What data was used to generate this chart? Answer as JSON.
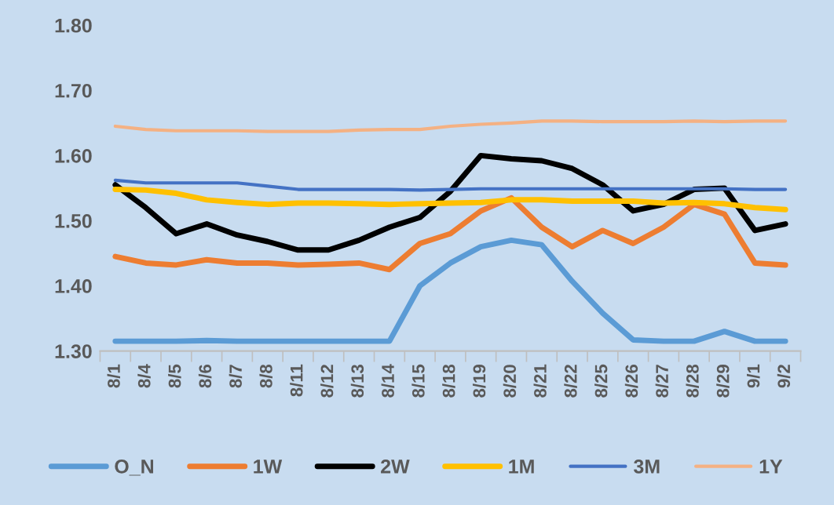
{
  "chart_data": {
    "type": "line",
    "categories": [
      "8/1",
      "8/4",
      "8/5",
      "8/6",
      "8/7",
      "8/8",
      "8/11",
      "8/12",
      "8/13",
      "8/14",
      "8/15",
      "8/18",
      "8/19",
      "8/20",
      "8/21",
      "8/22",
      "8/25",
      "8/26",
      "8/27",
      "8/28",
      "8/29",
      "9/1",
      "9/2"
    ],
    "series": [
      {
        "name": "O_N",
        "color": "#5b9bd5",
        "values": [
          1.315,
          1.315,
          1.315,
          1.316,
          1.315,
          1.315,
          1.315,
          1.315,
          1.315,
          1.315,
          1.4,
          1.435,
          1.46,
          1.47,
          1.463,
          1.407,
          1.358,
          1.317,
          1.315,
          1.315,
          1.33,
          1.315,
          1.315
        ]
      },
      {
        "name": "1W",
        "color": "#ed7d31",
        "values": [
          1.445,
          1.435,
          1.432,
          1.44,
          1.435,
          1.435,
          1.432,
          1.433,
          1.435,
          1.425,
          1.465,
          1.48,
          1.515,
          1.535,
          1.49,
          1.46,
          1.485,
          1.465,
          1.49,
          1.525,
          1.51,
          1.435,
          1.432
        ]
      },
      {
        "name": "2W",
        "color": "#000000",
        "values": [
          1.555,
          1.52,
          1.48,
          1.495,
          1.478,
          1.468,
          1.455,
          1.455,
          1.47,
          1.49,
          1.505,
          1.545,
          1.6,
          1.595,
          1.592,
          1.58,
          1.555,
          1.515,
          1.525,
          1.548,
          1.55,
          1.485,
          1.495
        ]
      },
      {
        "name": "1M",
        "color": "#ffc000",
        "values": [
          1.548,
          1.547,
          1.542,
          1.532,
          1.528,
          1.525,
          1.527,
          1.527,
          1.526,
          1.525,
          1.526,
          1.527,
          1.528,
          1.532,
          1.532,
          1.53,
          1.53,
          1.53,
          1.527,
          1.528,
          1.526,
          1.52,
          1.517
        ]
      },
      {
        "name": "3M",
        "color": "#4472c4",
        "values": [
          1.562,
          1.558,
          1.558,
          1.558,
          1.558,
          1.553,
          1.548,
          1.548,
          1.548,
          1.548,
          1.547,
          1.548,
          1.549,
          1.549,
          1.549,
          1.549,
          1.549,
          1.549,
          1.549,
          1.549,
          1.549,
          1.548,
          1.548
        ]
      },
      {
        "name": "1Y",
        "color": "#f4b183",
        "values": [
          1.645,
          1.64,
          1.638,
          1.638,
          1.638,
          1.637,
          1.637,
          1.637,
          1.639,
          1.64,
          1.64,
          1.645,
          1.648,
          1.65,
          1.653,
          1.653,
          1.652,
          1.652,
          1.652,
          1.653,
          1.652,
          1.653,
          1.653
        ]
      }
    ],
    "ylim": [
      1.3,
      1.8
    ],
    "yticks": [
      {
        "value": 1.3,
        "label": "1.30"
      },
      {
        "value": 1.4,
        "label": "1.40"
      },
      {
        "value": 1.5,
        "label": "1.50"
      },
      {
        "value": 1.6,
        "label": "1.60"
      },
      {
        "value": 1.7,
        "label": "1.70"
      },
      {
        "value": 1.8,
        "label": "1.80"
      }
    ],
    "grid": false,
    "legend": "bottom",
    "marker": "none",
    "line_style": "solid"
  }
}
